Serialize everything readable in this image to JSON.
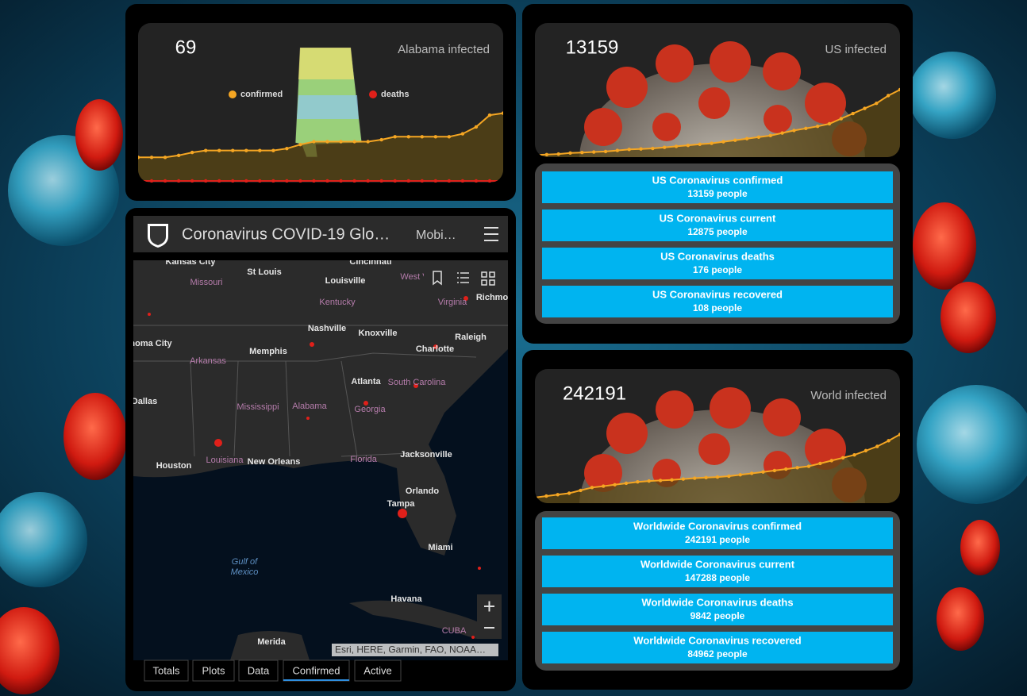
{
  "alabama": {
    "count": "69",
    "label": "Alabama infected",
    "legend": [
      "confirmed",
      "deaths"
    ],
    "chart_data": {
      "type": "line",
      "ylim": [
        0,
        160
      ],
      "series": [
        {
          "name": "confirmed",
          "color": "#f5a623",
          "values": [
            24,
            24,
            24,
            26,
            29,
            31,
            31,
            31,
            31,
            31,
            31,
            33,
            37,
            40,
            40,
            40,
            40,
            40,
            42,
            45,
            45,
            45,
            45,
            45,
            48,
            55,
            67,
            69
          ]
        },
        {
          "name": "deaths",
          "color": "#e0201a",
          "values": [
            0,
            0,
            0,
            0,
            0,
            0,
            0,
            0,
            0,
            0,
            0,
            0,
            0,
            0,
            0,
            0,
            0,
            0,
            0,
            0,
            0,
            0,
            0,
            0,
            0,
            0,
            0,
            0
          ]
        }
      ]
    }
  },
  "us": {
    "count": "13159",
    "label": "US infected",
    "chart_data": {
      "type": "line",
      "ylim": [
        0,
        26000
      ],
      "series": [
        {
          "color": "#f5a623",
          "values": [
            400,
            500,
            600,
            800,
            900,
            1000,
            1100,
            1300,
            1500,
            1600,
            1700,
            1900,
            2100,
            2300,
            2500,
            2700,
            3000,
            3300,
            3600,
            3900,
            4200,
            4700,
            5200,
            5600,
            6000,
            6500,
            7500,
            8500,
            9500,
            10500,
            12000,
            13159
          ]
        }
      ]
    },
    "rows": [
      {
        "title": "US Coronavirus confirmed",
        "value": "13159 people"
      },
      {
        "title": "US Coronavirus current",
        "value": "12875 people"
      },
      {
        "title": "US Coronavirus deaths",
        "value": "176 people"
      },
      {
        "title": "US Coronavirus recovered",
        "value": "108 people"
      }
    ]
  },
  "world": {
    "count": "242191",
    "label": "World infected",
    "chart_data": {
      "type": "line",
      "ylim": [
        0,
        470000
      ],
      "series": [
        {
          "color": "#f5a623",
          "values": [
            20000,
            25000,
            30000,
            35000,
            45000,
            55000,
            60000,
            65000,
            70000,
            75000,
            78000,
            80000,
            82000,
            85000,
            88000,
            90000,
            92000,
            95000,
            100000,
            105000,
            110000,
            115000,
            120000,
            125000,
            130000,
            140000,
            150000,
            160000,
            170000,
            185000,
            200000,
            220000,
            242191
          ]
        }
      ]
    },
    "rows": [
      {
        "title": "Worldwide Coronavirus confirmed",
        "value": "242191 people"
      },
      {
        "title": "Worldwide Coronavirus current",
        "value": "147288 people"
      },
      {
        "title": "Worldwide Coronavirus deaths",
        "value": "9842 people"
      },
      {
        "title": "Worldwide Coronavirus recovered",
        "value": "84962 people"
      }
    ]
  },
  "map": {
    "title": "Coronavirus COVID-19 Glo…",
    "subtitle": "Mobi…",
    "attribution": "Esri, HERE, Garmin, FAO, NOAA…",
    "labels": [
      "Kansas City",
      "Cincinnati",
      "St Louis",
      "Missouri",
      "Louisville",
      "West V",
      "Virginia",
      "Richmo",
      "Kentucky",
      "Nashville",
      "Knoxville",
      "Raleigh",
      "homa City",
      "Memphis",
      "Charlotte",
      "Arkansas",
      "Atlanta",
      "South Carolina",
      "Dallas",
      "Mississippi",
      "Alabama",
      "Georgia",
      "Houston",
      "Louisiana",
      "New Orleans",
      "Florida",
      "Jacksonville",
      "Orlando",
      "Tampa",
      "Miami",
      "Gulf of",
      "Mexico",
      "Havana",
      "CUBA",
      "Merida"
    ],
    "tabs": [
      "Totals",
      "Plots",
      "Data",
      "Confirmed",
      "Active"
    ],
    "active_tab": 3
  }
}
